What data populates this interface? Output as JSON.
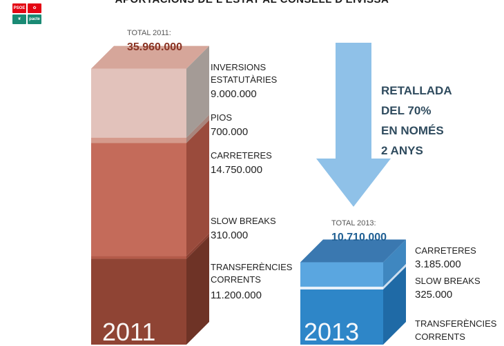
{
  "title": "APORTACIONS DE L'ESTAT AL CONSELL D'EIVISSA",
  "logo": {
    "psoe": "PSOE",
    "pacte": "pacte"
  },
  "colors": {
    "annotation_arrow": "#8fc1e8",
    "bar2011_top": "#d6a69a",
    "bar2011_side": "#9c948f",
    "bar2013_front": "#2f87c9",
    "bar2013_top": "#3a78b0",
    "total2011": "#8a3424",
    "total2013": "#1f5f93"
  },
  "annotation": [
    "RETALLADA",
    "DEL 70%",
    "EN NOMÉS",
    "2 ANYS"
  ],
  "chart_data": {
    "type": "bar",
    "title": "APORTACIONS DE L'ESTAT AL CONSELL D'EIVISSA",
    "categories": [
      "2011",
      "2013"
    ],
    "totals": [
      {
        "caption": "TOTAL 2011:",
        "value": "35.960.000"
      },
      {
        "caption": "TOTAL 2013:",
        "value": "10.710.000"
      }
    ],
    "series": [
      {
        "name_lines": [
          "TRANSFERÈNCIES",
          "CORRENTS"
        ],
        "values": [
          11200000,
          7200000
        ],
        "labels": [
          "11.200.000",
          ""
        ],
        "front": [
          "#8f4434",
          "#2e86c8"
        ],
        "side": [
          "#6e3326",
          "#1f6aa6"
        ]
      },
      {
        "name_lines": [
          "SLOW BREAKS"
        ],
        "values": [
          310000,
          325000
        ],
        "labels": [
          "310.000",
          "325.000"
        ],
        "front": [
          "#b45a49",
          "#e8f1fa"
        ],
        "side": [
          "#8a3f31",
          "#cddff0"
        ]
      },
      {
        "name_lines": [
          "CARRETERES"
        ],
        "values": [
          14750000,
          3185000
        ],
        "labels": [
          "14.750.000",
          "3.185.000"
        ],
        "front": [
          "#c46b5a",
          "#5aa6e0"
        ],
        "side": [
          "#9a4b3c",
          "#3f87c0"
        ]
      },
      {
        "name_lines": [
          "PIOS"
        ],
        "values": [
          700000,
          0
        ],
        "labels": [
          "700.000",
          ""
        ],
        "front": [
          "#d59a8c",
          null
        ],
        "side": [
          "#a8857c",
          null
        ]
      },
      {
        "name_lines": [
          "INVERSIONS",
          "ESTATUTÀRIES"
        ],
        "values": [
          9000000,
          0
        ],
        "labels": [
          "9.000.000",
          ""
        ],
        "front": [
          "#e2c2bb",
          null
        ],
        "side": [
          "#a49b96",
          null
        ]
      }
    ]
  }
}
